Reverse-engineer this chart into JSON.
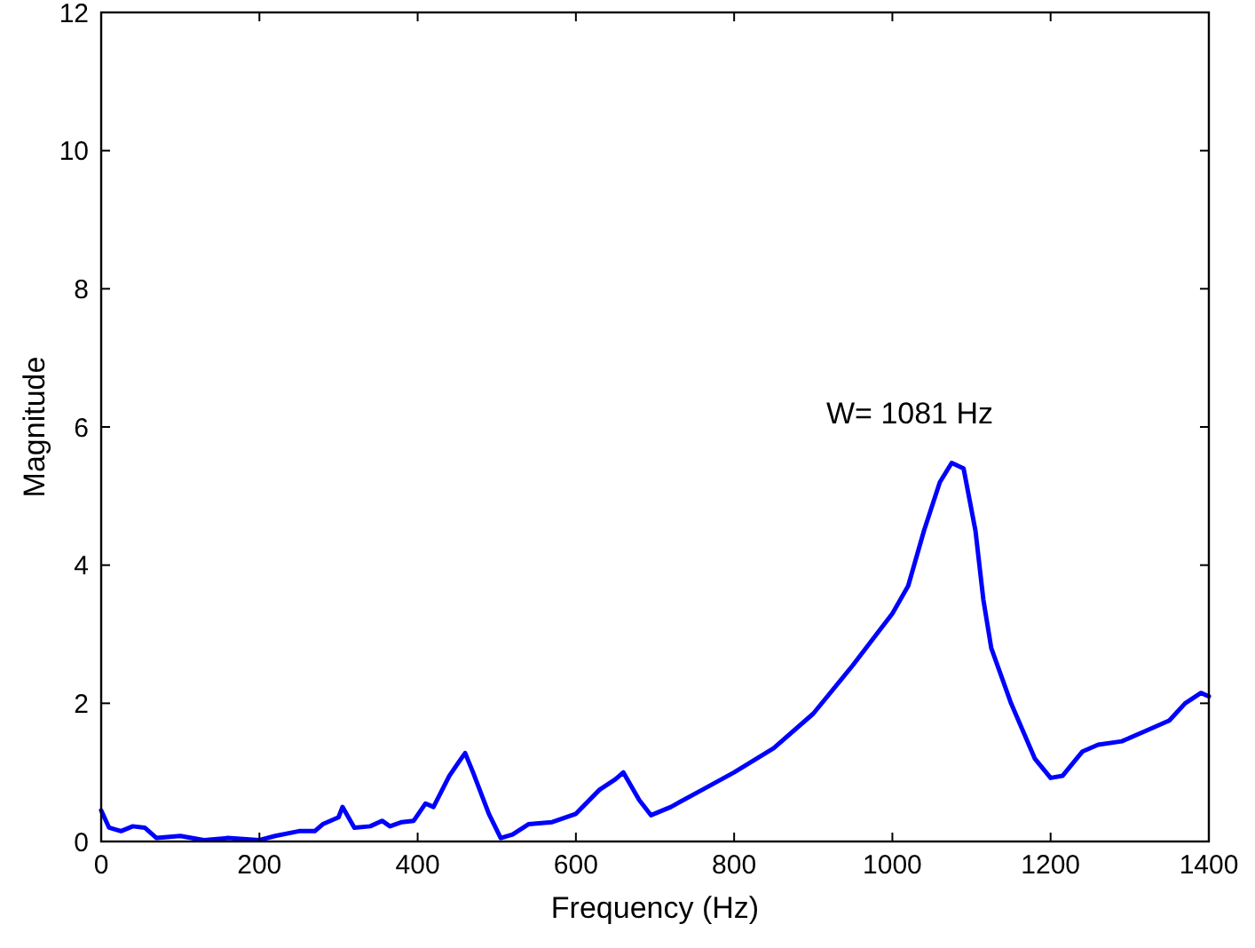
{
  "chart_data": {
    "type": "line",
    "xlabel": "Frequency (Hz)",
    "ylabel": "Magnitude",
    "xlim": [
      0,
      1400
    ],
    "ylim": [
      0,
      12
    ],
    "xticks": [
      0,
      200,
      400,
      600,
      800,
      1000,
      1200,
      1400
    ],
    "yticks": [
      0,
      2,
      4,
      6,
      8,
      10,
      12
    ],
    "grid": false,
    "marker": "none",
    "line_style": "solid",
    "annotations": [
      "W= 1081 Hz"
    ],
    "series": [
      {
        "color": "#0000ff",
        "x": [
          0,
          10,
          25,
          40,
          55,
          70,
          100,
          130,
          160,
          200,
          220,
          250,
          270,
          280,
          300,
          305,
          320,
          340,
          355,
          365,
          380,
          395,
          410,
          420,
          440,
          455,
          460,
          470,
          490,
          505,
          520,
          540,
          570,
          600,
          630,
          650,
          660,
          680,
          695,
          720,
          760,
          800,
          850,
          900,
          950,
          980,
          1000,
          1020,
          1040,
          1060,
          1075,
          1090,
          1105,
          1115,
          1125,
          1150,
          1180,
          1200,
          1215,
          1240,
          1260,
          1290,
          1320,
          1350,
          1370,
          1390,
          1400
        ],
        "values": [
          0.45,
          0.2,
          0.15,
          0.22,
          0.2,
          0.05,
          0.08,
          0.02,
          0.05,
          0.02,
          0.08,
          0.15,
          0.15,
          0.25,
          0.35,
          0.5,
          0.2,
          0.22,
          0.3,
          0.22,
          0.28,
          0.3,
          0.55,
          0.5,
          0.95,
          1.2,
          1.28,
          1.0,
          0.4,
          0.05,
          0.1,
          0.25,
          0.28,
          0.4,
          0.75,
          0.9,
          1.0,
          0.6,
          0.38,
          0.5,
          0.75,
          1.0,
          1.35,
          1.85,
          2.55,
          3.0,
          3.3,
          3.7,
          4.5,
          5.2,
          5.48,
          5.4,
          4.5,
          3.5,
          2.8,
          2.0,
          1.2,
          0.92,
          0.95,
          1.3,
          1.4,
          1.45,
          1.6,
          1.75,
          2.0,
          2.15,
          2.1
        ]
      }
    ]
  }
}
